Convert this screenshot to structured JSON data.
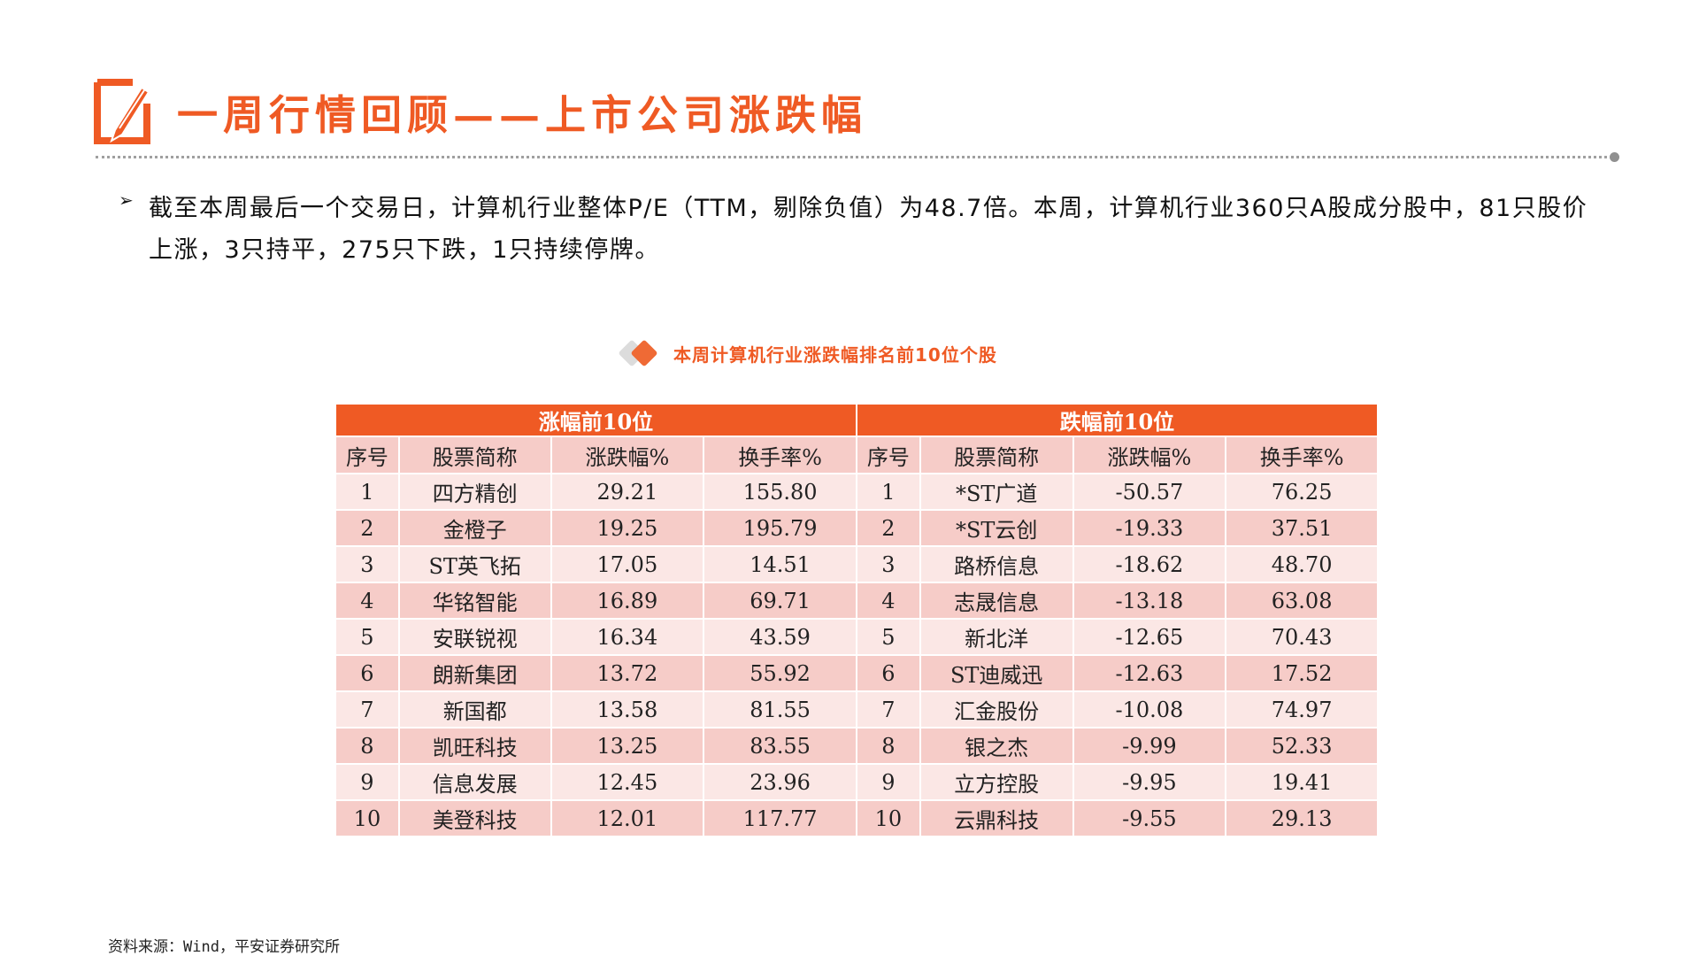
{
  "header": {
    "title": "一周行情回顾——上市公司涨跌幅",
    "accent_color": "#EF5A24"
  },
  "summary": {
    "bullet_icon": "arrow-right-bullet",
    "text": "截至本周最后一个交易日，计算机行业整体P/E（TTM，剔除负值）为48.7倍。本周，计算机行业360只A股成分股中，81只股价上涨，3只持平，275只下跌，1只持续停牌。"
  },
  "table": {
    "caption": "本周计算机行业涨跌幅排名前10位个股",
    "gainers_title": "涨幅前10位",
    "losers_title": "跌幅前10位",
    "columns": [
      "序号",
      "股票简称",
      "涨跌幅%",
      "换手率%"
    ],
    "rows": [
      {
        "g": [
          "1",
          "四方精创",
          "29.21",
          "155.80"
        ],
        "l": [
          "1",
          "*ST广道",
          "-50.57",
          "76.25"
        ]
      },
      {
        "g": [
          "2",
          "金橙子",
          "19.25",
          "195.79"
        ],
        "l": [
          "2",
          "*ST云创",
          "-19.33",
          "37.51"
        ]
      },
      {
        "g": [
          "3",
          "ST英飞拓",
          "17.05",
          "14.51"
        ],
        "l": [
          "3",
          "路桥信息",
          "-18.62",
          "48.70"
        ]
      },
      {
        "g": [
          "4",
          "华铭智能",
          "16.89",
          "69.71"
        ],
        "l": [
          "4",
          "志晟信息",
          "-13.18",
          "63.08"
        ]
      },
      {
        "g": [
          "5",
          "安联锐视",
          "16.34",
          "43.59"
        ],
        "l": [
          "5",
          "新北洋",
          "-12.65",
          "70.43"
        ]
      },
      {
        "g": [
          "6",
          "朗新集团",
          "13.72",
          "55.92"
        ],
        "l": [
          "6",
          "ST迪威迅",
          "-12.63",
          "17.52"
        ]
      },
      {
        "g": [
          "7",
          "新国都",
          "13.58",
          "81.55"
        ],
        "l": [
          "7",
          "汇金股份",
          "-10.08",
          "74.97"
        ]
      },
      {
        "g": [
          "8",
          "凯旺科技",
          "13.25",
          "83.55"
        ],
        "l": [
          "8",
          "银之杰",
          "-9.99",
          "52.33"
        ]
      },
      {
        "g": [
          "9",
          "信息发展",
          "12.45",
          "23.96"
        ],
        "l": [
          "9",
          "立方控股",
          "-9.95",
          "19.41"
        ]
      },
      {
        "g": [
          "10",
          "美登科技",
          "12.01",
          "117.77"
        ],
        "l": [
          "10",
          "云鼎科技",
          "-9.55",
          "29.13"
        ]
      }
    ]
  },
  "source": "资料来源：Wind，平安证券研究所"
}
